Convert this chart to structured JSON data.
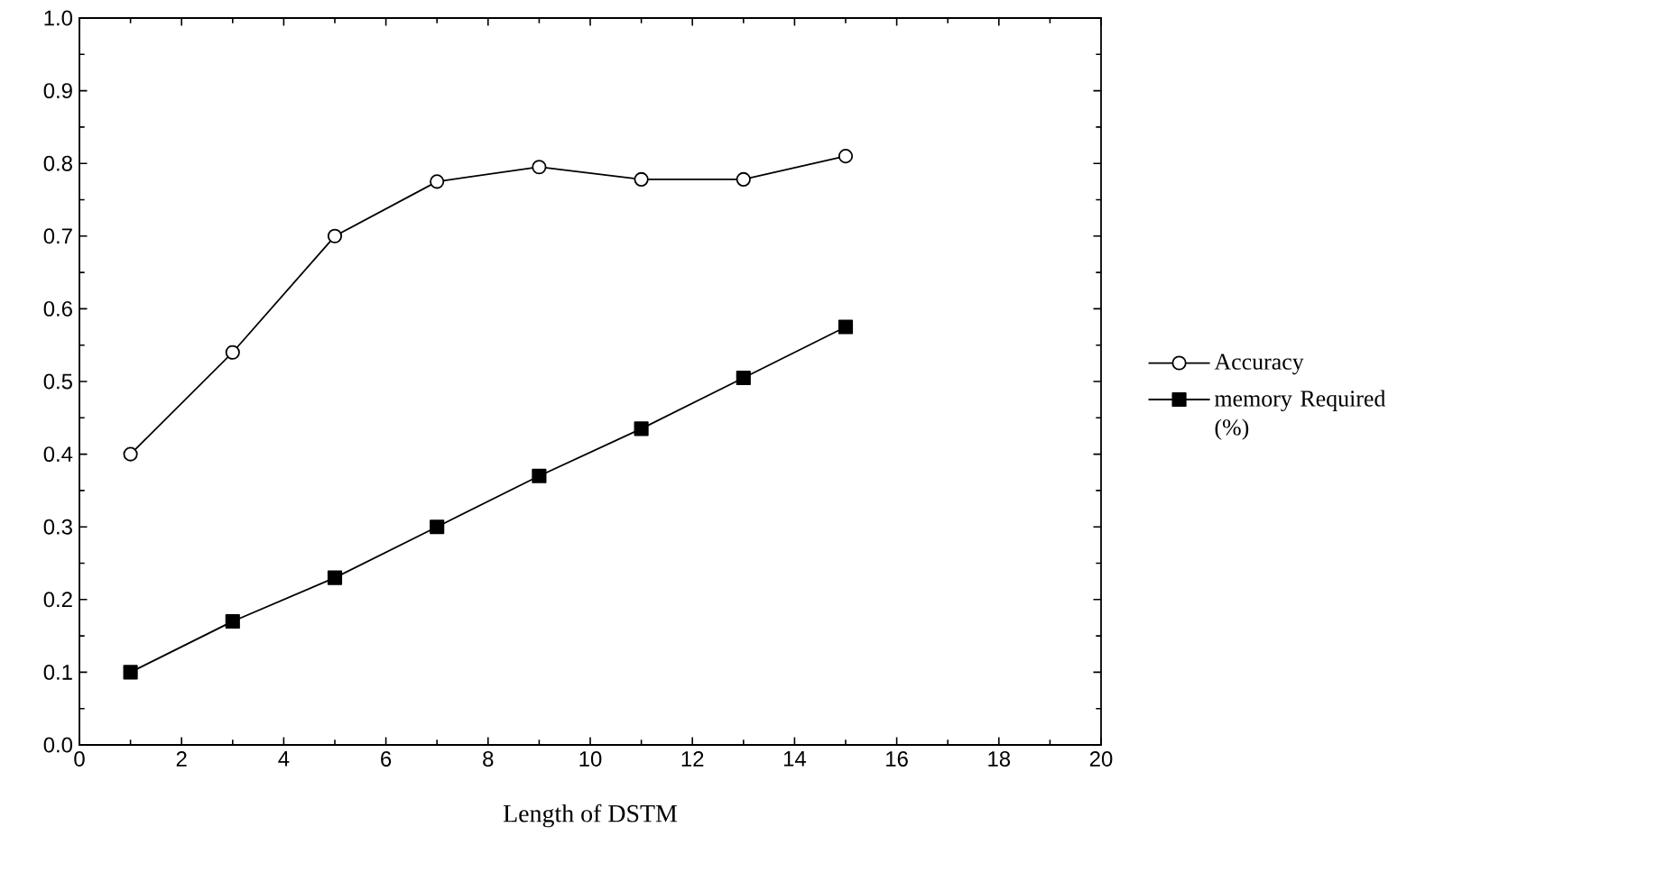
{
  "chart_data": {
    "type": "line",
    "xlabel": "Length of DSTM",
    "x": [
      1,
      3,
      5,
      7,
      9,
      11,
      13,
      15
    ],
    "series": [
      {
        "name": "Accuracy",
        "color": "#000000",
        "marker": "circle",
        "values": [
          0.4,
          0.54,
          0.7,
          0.775,
          0.795,
          0.778,
          0.778,
          0.81
        ]
      },
      {
        "name": "memory Required (%)",
        "color": "#000000",
        "marker": "square",
        "values": [
          0.1,
          0.17,
          0.23,
          0.3,
          0.37,
          0.435,
          0.505,
          0.575
        ]
      }
    ],
    "xlim": [
      0,
      20
    ],
    "xticks": [
      0,
      2,
      4,
      6,
      8,
      10,
      12,
      14,
      16,
      18,
      20
    ],
    "ylim": [
      0,
      1
    ],
    "yticks": [
      {
        "value": 0,
        "label": "0.0"
      },
      {
        "value": 0.1,
        "label": "0.1"
      },
      {
        "value": 0.2,
        "label": "0.2"
      },
      {
        "value": 0.3,
        "label": "0.3"
      },
      {
        "value": 0.4,
        "label": "0.4"
      },
      {
        "value": 0.5,
        "label": "0.5"
      },
      {
        "value": 0.6,
        "label": "0.6"
      },
      {
        "value": 0.7,
        "label": "0.7"
      },
      {
        "value": 0.8,
        "label": "0.8"
      },
      {
        "value": 0.9,
        "label": "0.9"
      },
      {
        "value": 1,
        "label": "1.0"
      }
    ],
    "grid": false,
    "legend": "right",
    "line_style": "solid"
  }
}
